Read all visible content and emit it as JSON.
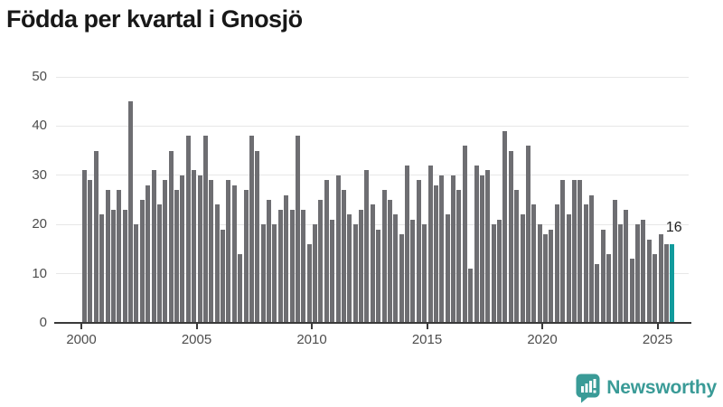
{
  "title": "Födda per kvartal i Gnosjö",
  "annotation": {
    "last_value_label": "16"
  },
  "branding": {
    "logo_text": "Newsworthy",
    "logo_icon": "speech-bubble-bar-chart-icon"
  },
  "colors": {
    "bar": "#6e6e72",
    "highlight": "#119b9c",
    "brand_teal": "#3a9b97",
    "axis": "#3a3a3a",
    "gridline": "#e7e7e7",
    "tick_text": "#4d4d4d",
    "title_text": "#181818"
  },
  "chart_data": {
    "type": "bar",
    "title": "Födda per kvartal i Gnosjö",
    "xlabel": "",
    "ylabel": "",
    "ylim": [
      0,
      50
    ],
    "y_ticks": [
      0,
      10,
      20,
      30,
      40,
      50
    ],
    "x_ticks": [
      2000,
      2005,
      2010,
      2015,
      2020,
      2025
    ],
    "grid": "horizontal",
    "start_period": "2000-Q1",
    "end_period": "2025-Q3",
    "period_step": "quarter",
    "highlight_index": 102,
    "highlight_value_label": "16",
    "values": [
      31,
      29,
      35,
      22,
      27,
      23,
      27,
      23,
      45,
      20,
      25,
      28,
      31,
      24,
      29,
      35,
      27,
      30,
      38,
      31,
      30,
      38,
      29,
      24,
      19,
      29,
      28,
      14,
      27,
      38,
      35,
      20,
      25,
      20,
      23,
      26,
      23,
      38,
      23,
      16,
      20,
      25,
      29,
      21,
      30,
      27,
      22,
      20,
      23,
      31,
      24,
      19,
      27,
      25,
      22,
      18,
      32,
      21,
      29,
      20,
      32,
      28,
      30,
      22,
      30,
      27,
      36,
      11,
      32,
      30,
      31,
      20,
      21,
      39,
      35,
      27,
      22,
      36,
      24,
      20,
      18,
      19,
      24,
      29,
      22,
      29,
      29,
      24,
      26,
      12,
      19,
      14,
      25,
      20,
      23,
      13,
      20,
      21,
      17,
      14,
      18,
      16,
      16
    ]
  }
}
